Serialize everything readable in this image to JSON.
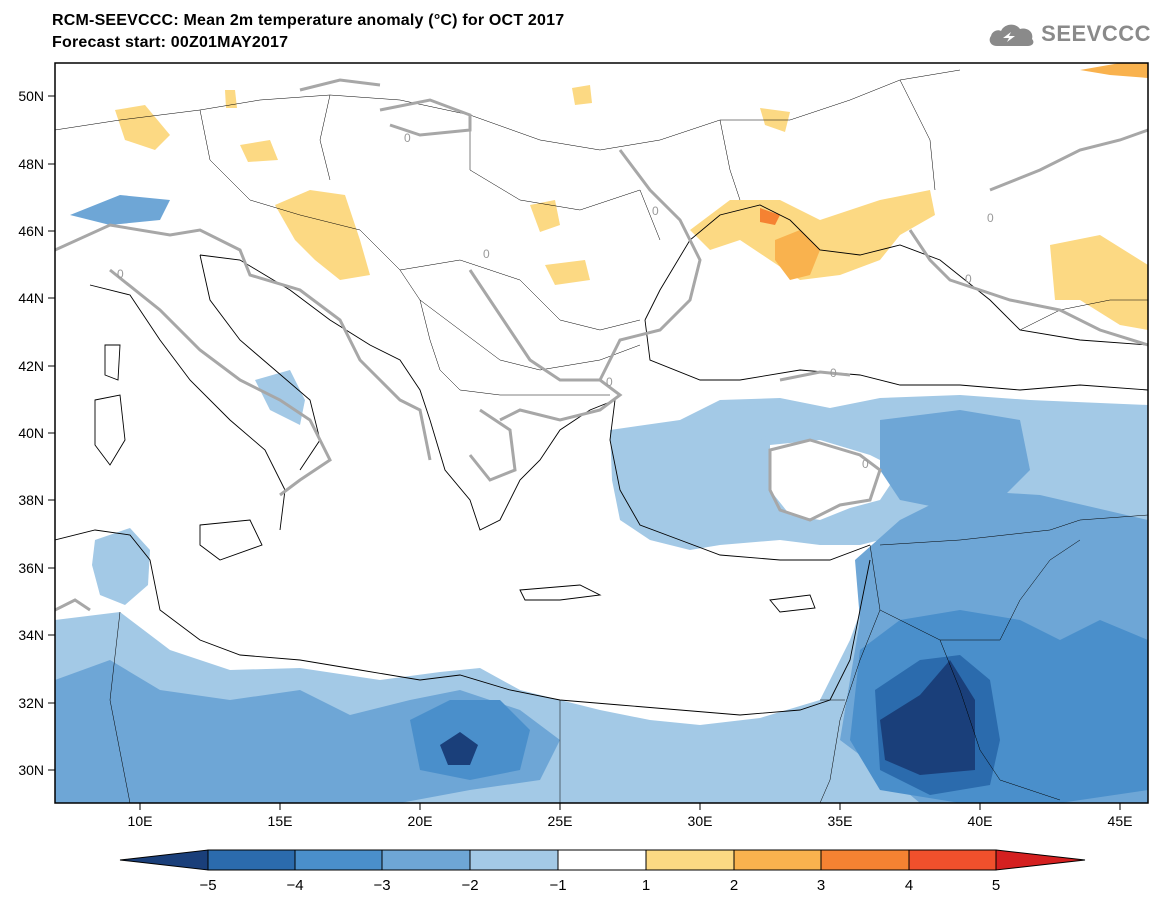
{
  "header": {
    "title_line1": "RCM-SEEVCCC: Mean 2m temperature anomaly (°C) for OCT 2017",
    "title_line2": "Forecast start: 00Z01MAY2017",
    "logo_text": "SEEVCCC"
  },
  "map": {
    "lat_labels": [
      "50N",
      "48N",
      "46N",
      "44N",
      "42N",
      "40N",
      "38N",
      "36N",
      "34N",
      "32N",
      "30N"
    ],
    "lon_labels": [
      "10E",
      "15E",
      "20E",
      "25E",
      "30E",
      "35E",
      "40E",
      "45E"
    ],
    "contour_label": "0"
  },
  "colorbar": {
    "labels": [
      "−5",
      "−4",
      "−3",
      "−2",
      "−1",
      "1",
      "2",
      "3",
      "4",
      "5"
    ],
    "colors": [
      "#1a3f7a",
      "#2b6bad",
      "#4a8fcb",
      "#6ea6d6",
      "#a3c9e6",
      "#ffffff",
      "#fcd983",
      "#f9b24e",
      "#f58232",
      "#f0502c",
      "#d42020"
    ]
  },
  "anomaly_colors": {
    "minus5": "#1a3f7a",
    "minus4": "#2b6bad",
    "minus3": "#4a8fcb",
    "minus2": "#6ea6d6",
    "minus1": "#a3c9e6",
    "plus1": "#fcd983",
    "plus2": "#f9b24e",
    "plus3": "#f58232"
  }
}
